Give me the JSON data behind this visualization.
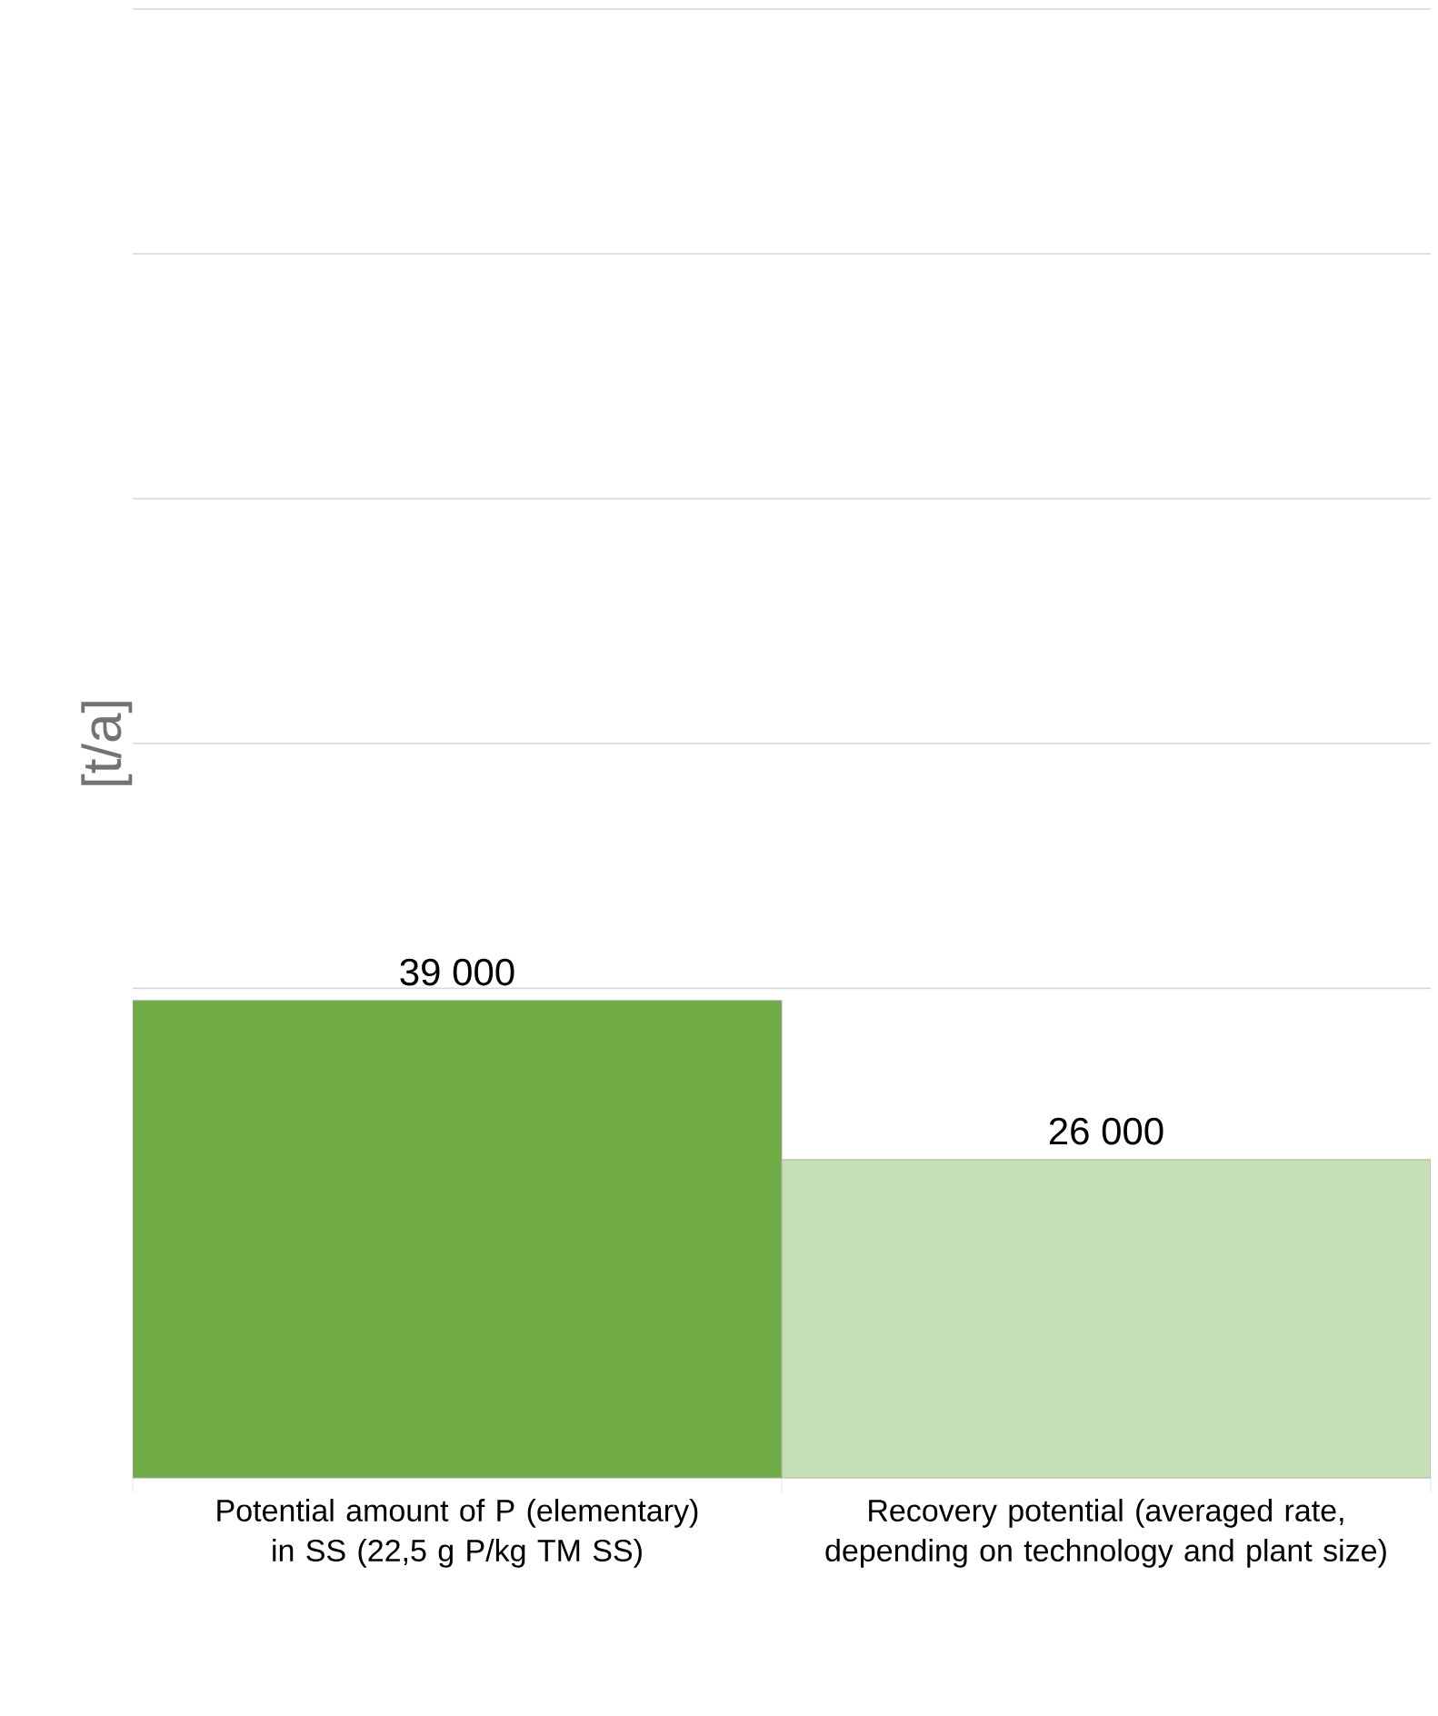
{
  "chart_data": {
    "type": "bar",
    "ylabel": "[t/a]",
    "categories": [
      "Potential amount of P (elementary) in SS (22,5 g P/kg TM SS)",
      "Recovery potential (averaged rate, depending on technology and plant size)"
    ],
    "values": [
      39000,
      26000
    ],
    "colors": [
      "#70ad47",
      "#c5e0b4"
    ],
    "value_labels": [
      "39 000",
      "26 000"
    ],
    "ylim": [
      0,
      120000
    ],
    "yticks": [
      {
        "value": 0,
        "label": null
      },
      {
        "value": 20000,
        "label": null
      },
      {
        "value": 40000,
        "label": null
      },
      {
        "value": 60000,
        "label": null
      },
      {
        "value": 80000,
        "label": null
      },
      {
        "value": 100000,
        "label": null
      },
      {
        "value": 120000,
        "label": null
      }
    ],
    "grid": "y"
  }
}
